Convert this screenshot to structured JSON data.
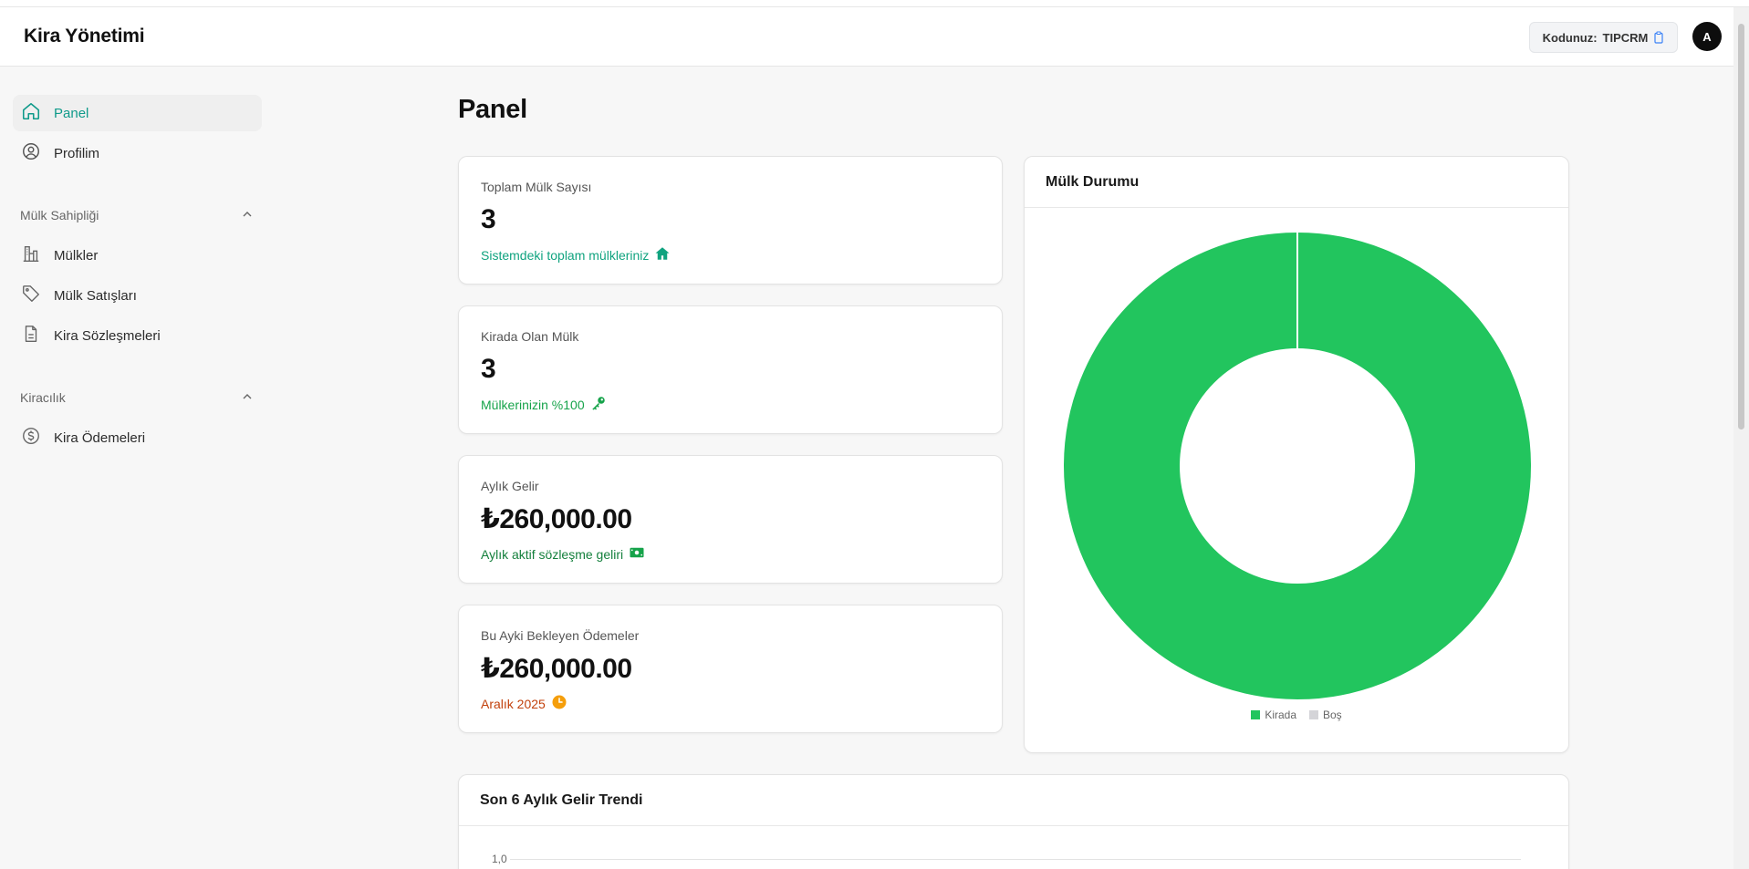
{
  "app": {
    "title": "Kira Yönetimi"
  },
  "header": {
    "code_label": "Kodunuz:",
    "code_value": "TIPCRM",
    "avatar_initial": "A"
  },
  "sidebar": {
    "items": [
      {
        "label": "Panel",
        "icon": "home-icon",
        "active": true
      },
      {
        "label": "Profilim",
        "icon": "user-circle-icon"
      }
    ],
    "sections": [
      {
        "title": "Mülk Sahipliği",
        "items": [
          {
            "label": "Mülkler",
            "icon": "building-icon"
          },
          {
            "label": "Mülk Satışları",
            "icon": "tag-icon"
          },
          {
            "label": "Kira Sözleşmeleri",
            "icon": "document-icon"
          }
        ]
      },
      {
        "title": "Kiracılık",
        "items": [
          {
            "label": "Kira Ödemeleri",
            "icon": "dollar-circle-icon"
          }
        ]
      }
    ]
  },
  "page": {
    "title": "Panel"
  },
  "stats": [
    {
      "label": "Toplam Mülk Sayısı",
      "value": "3",
      "sub": "Sistemdeki toplam mülkleriniz",
      "icon": "home-icon",
      "color": "#10a37f"
    },
    {
      "label": "Kirada Olan Mülk",
      "value": "3",
      "sub": "Mülkerinizin %100",
      "icon": "key-icon",
      "color": "#16a34a"
    },
    {
      "label": "Aylık Gelir",
      "value": "₺260,000.00",
      "sub": "Aylık aktif sözleşme geliri",
      "icon": "cash-icon",
      "color": "#15803d"
    },
    {
      "label": "Bu Ayki Bekleyen Ödemeler",
      "value": "₺260,000.00",
      "sub": "Aralık 2025",
      "icon": "clock-icon",
      "color": "#c2410c"
    }
  ],
  "status_chart": {
    "title": "Mülk Durumu",
    "chart_data": {
      "type": "pie",
      "donut": true,
      "categories": [
        "Kirada",
        "Boş"
      ],
      "values": [
        3,
        0
      ],
      "colors": [
        "#22c55e",
        "#d4d4d8"
      ],
      "legend": "bottom"
    }
  },
  "trend_chart": {
    "title": "Son 6 Aylık Gelir Trendi",
    "y_tick_top": "1,0"
  }
}
